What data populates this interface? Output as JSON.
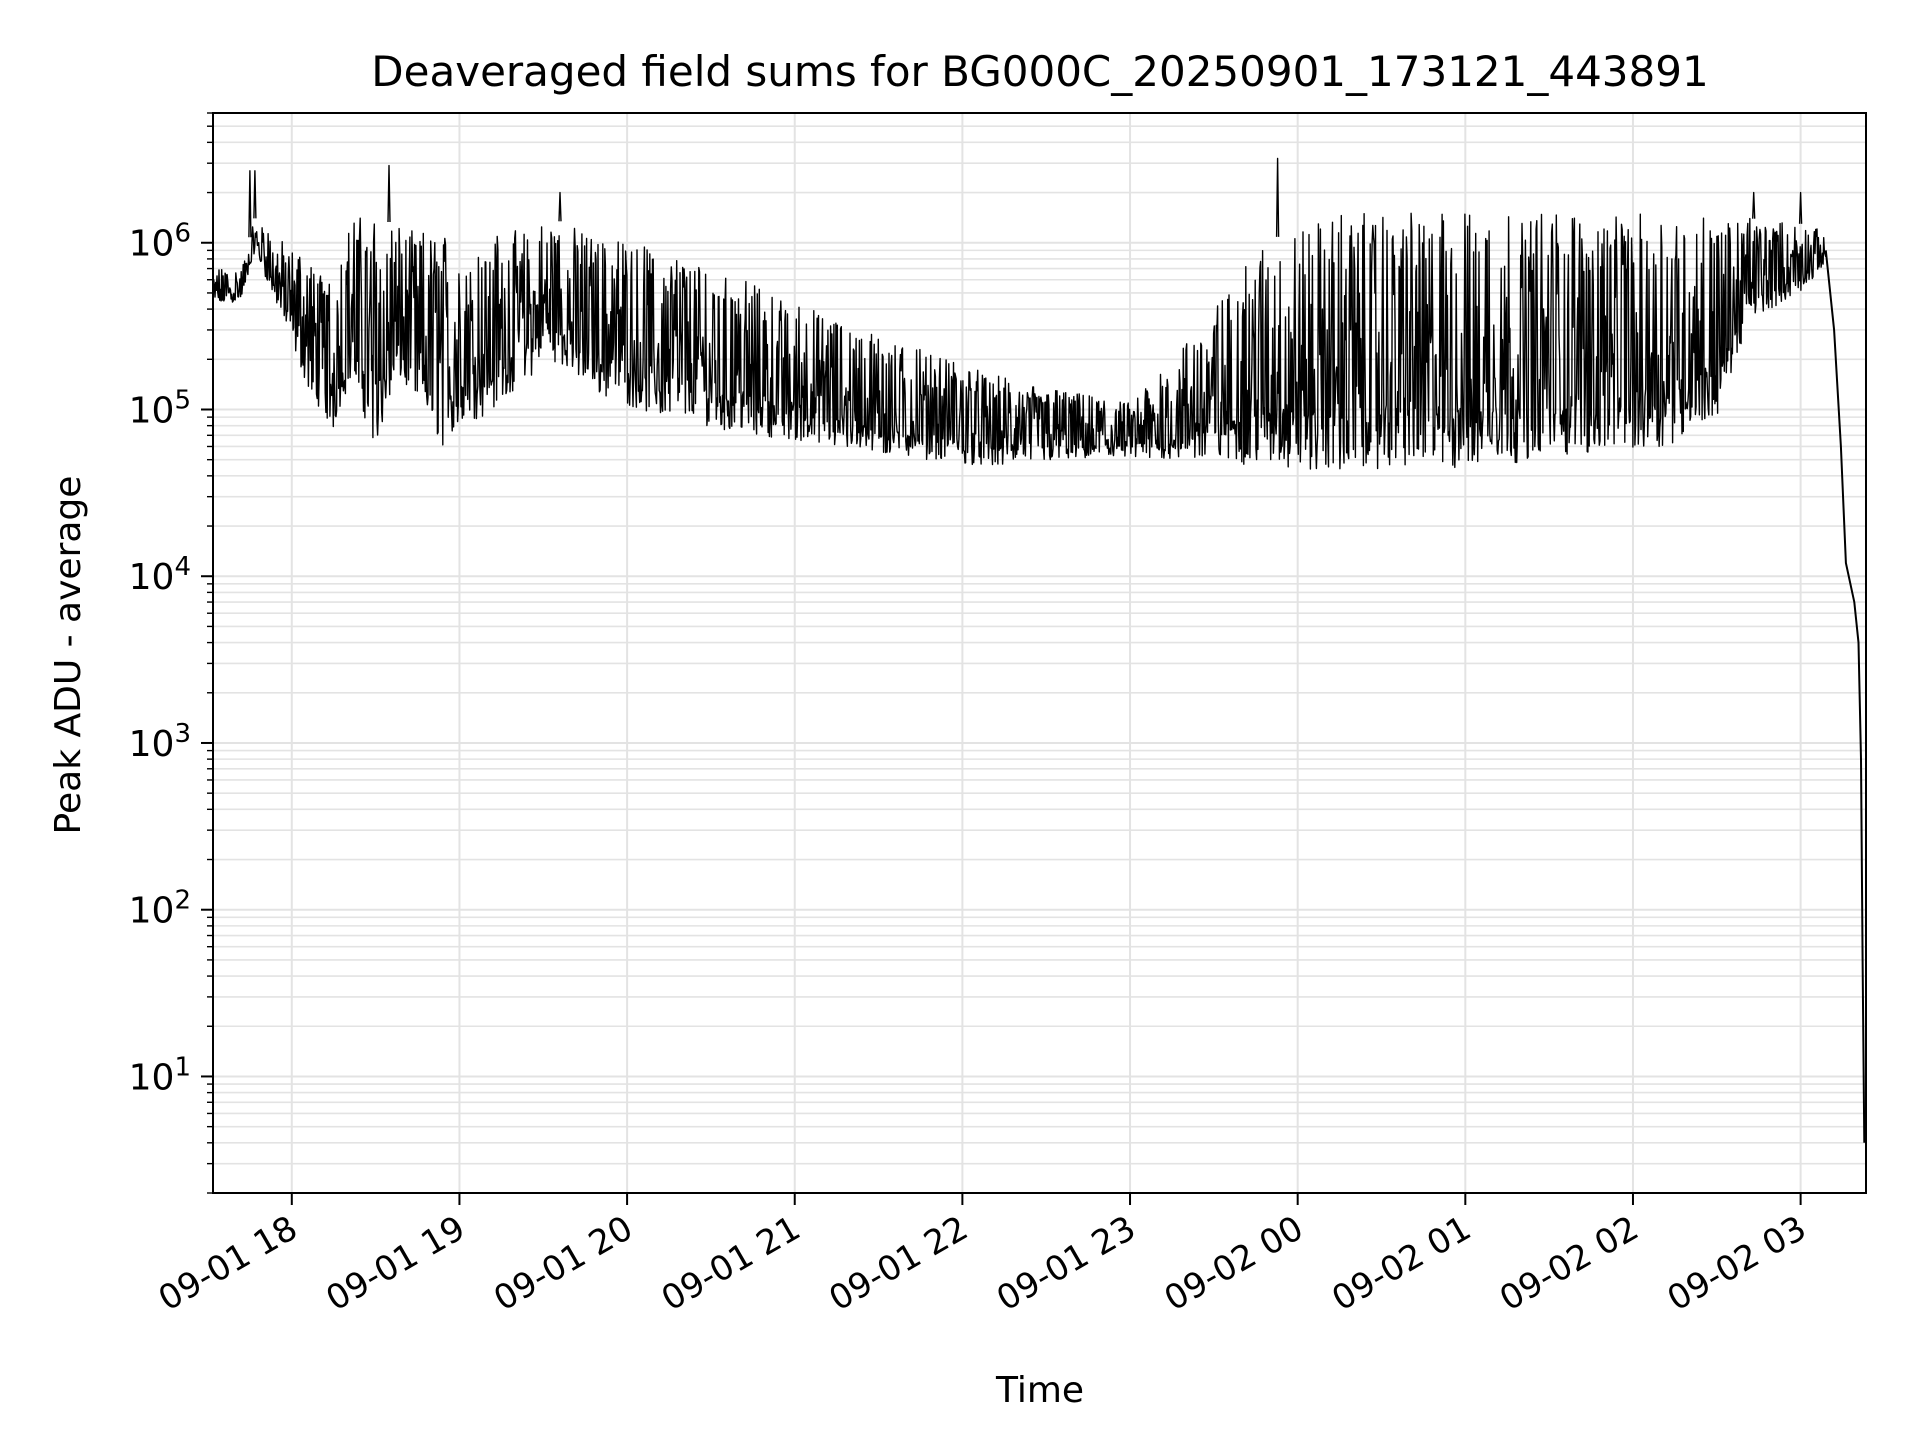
{
  "chart_data": {
    "type": "line",
    "title": "Deaveraged field sums for BG000C_20250901_173121_443891",
    "xlabel": "Time",
    "ylabel": "Peak ADU - average",
    "yscale": "log",
    "ylim": [
      2,
      6000000
    ],
    "xlim_hours": [
      17.53,
      27.39
    ],
    "grid": true,
    "x_ticks": [
      {
        "label": "09-01 18",
        "hour": 18
      },
      {
        "label": "09-01 19",
        "hour": 19
      },
      {
        "label": "09-01 20",
        "hour": 20
      },
      {
        "label": "09-01 21",
        "hour": 21
      },
      {
        "label": "09-01 22",
        "hour": 22
      },
      {
        "label": "09-01 23",
        "hour": 23
      },
      {
        "label": "09-02 00",
        "hour": 24
      },
      {
        "label": "09-02 01",
        "hour": 25
      },
      {
        "label": "09-02 02",
        "hour": 26
      },
      {
        "label": "09-02 03",
        "hour": 27
      }
    ],
    "y_ticks": [
      {
        "base": "10",
        "exp": "1",
        "value": 10
      },
      {
        "base": "10",
        "exp": "2",
        "value": 100
      },
      {
        "base": "10",
        "exp": "3",
        "value": 1000
      },
      {
        "base": "10",
        "exp": "4",
        "value": 10000
      },
      {
        "base": "10",
        "exp": "5",
        "value": 100000
      },
      {
        "base": "10",
        "exp": "6",
        "value": 1000000
      }
    ],
    "series": [
      {
        "name": "field sums",
        "color": "#000000",
        "envelope": [
          {
            "hour": 17.53,
            "low": 420000,
            "high": 700000
          },
          {
            "hour": 17.7,
            "low": 450000,
            "high": 700000
          },
          {
            "hour": 17.78,
            "low": 900000,
            "high": 1400000
          },
          {
            "hour": 17.9,
            "low": 450000,
            "high": 1100000
          },
          {
            "hour": 18.0,
            "low": 250000,
            "high": 950000
          },
          {
            "hour": 18.1,
            "low": 130000,
            "high": 800000
          },
          {
            "hour": 18.25,
            "low": 75000,
            "high": 600000
          },
          {
            "hour": 18.35,
            "low": 150000,
            "high": 1400000
          },
          {
            "hour": 18.5,
            "low": 60000,
            "high": 1500000
          },
          {
            "hour": 18.65,
            "low": 150000,
            "high": 1200000
          },
          {
            "hour": 18.9,
            "low": 60000,
            "high": 1200000
          },
          {
            "hour": 19.2,
            "low": 100000,
            "high": 1100000
          },
          {
            "hour": 19.55,
            "low": 200000,
            "high": 1400000
          },
          {
            "hour": 19.85,
            "low": 120000,
            "high": 1100000
          },
          {
            "hour": 20.2,
            "low": 90000,
            "high": 900000
          },
          {
            "hour": 20.6,
            "low": 75000,
            "high": 650000
          },
          {
            "hour": 21.0,
            "low": 65000,
            "high": 450000
          },
          {
            "hour": 21.4,
            "low": 55000,
            "high": 300000
          },
          {
            "hour": 21.8,
            "low": 50000,
            "high": 220000
          },
          {
            "hour": 22.2,
            "low": 45000,
            "high": 160000
          },
          {
            "hour": 22.6,
            "low": 50000,
            "high": 130000
          },
          {
            "hour": 23.0,
            "low": 50000,
            "high": 110000
          },
          {
            "hour": 23.4,
            "low": 50000,
            "high": 300000
          },
          {
            "hour": 23.8,
            "low": 45000,
            "high": 1000000
          },
          {
            "hour": 24.2,
            "low": 42000,
            "high": 1500000
          },
          {
            "hour": 24.6,
            "low": 45000,
            "high": 1500000
          },
          {
            "hour": 25.0,
            "low": 42000,
            "high": 1550000
          },
          {
            "hour": 25.4,
            "low": 50000,
            "high": 1550000
          },
          {
            "hour": 25.8,
            "low": 55000,
            "high": 1500000
          },
          {
            "hour": 26.2,
            "low": 60000,
            "high": 1500000
          },
          {
            "hour": 26.5,
            "low": 90000,
            "high": 1450000
          },
          {
            "hour": 26.7,
            "low": 350000,
            "high": 1400000
          },
          {
            "hour": 27.0,
            "low": 500000,
            "high": 1300000
          },
          {
            "hour": 27.12,
            "low": 700000,
            "high": 1200000
          },
          {
            "hour": 27.15,
            "low": 800000,
            "high": 1000000
          }
        ],
        "tail": [
          {
            "hour": 27.15,
            "value": 900000
          },
          {
            "hour": 27.2,
            "value": 300000
          },
          {
            "hour": 27.24,
            "value": 60000
          },
          {
            "hour": 27.27,
            "value": 12000
          },
          {
            "hour": 27.32,
            "value": 7000
          },
          {
            "hour": 27.345,
            "value": 4000
          },
          {
            "hour": 27.36,
            "value": 800
          },
          {
            "hour": 27.37,
            "value": 50
          },
          {
            "hour": 27.38,
            "value": 4
          }
        ],
        "spikes": [
          {
            "hour": 17.75,
            "value": 2700000
          },
          {
            "hour": 17.78,
            "value": 2700000
          },
          {
            "hour": 18.58,
            "value": 2900000
          },
          {
            "hour": 19.6,
            "value": 2000000
          },
          {
            "hour": 23.88,
            "value": 3200000
          },
          {
            "hour": 26.72,
            "value": 2000000
          },
          {
            "hour": 27.0,
            "value": 2000000
          }
        ]
      }
    ]
  }
}
